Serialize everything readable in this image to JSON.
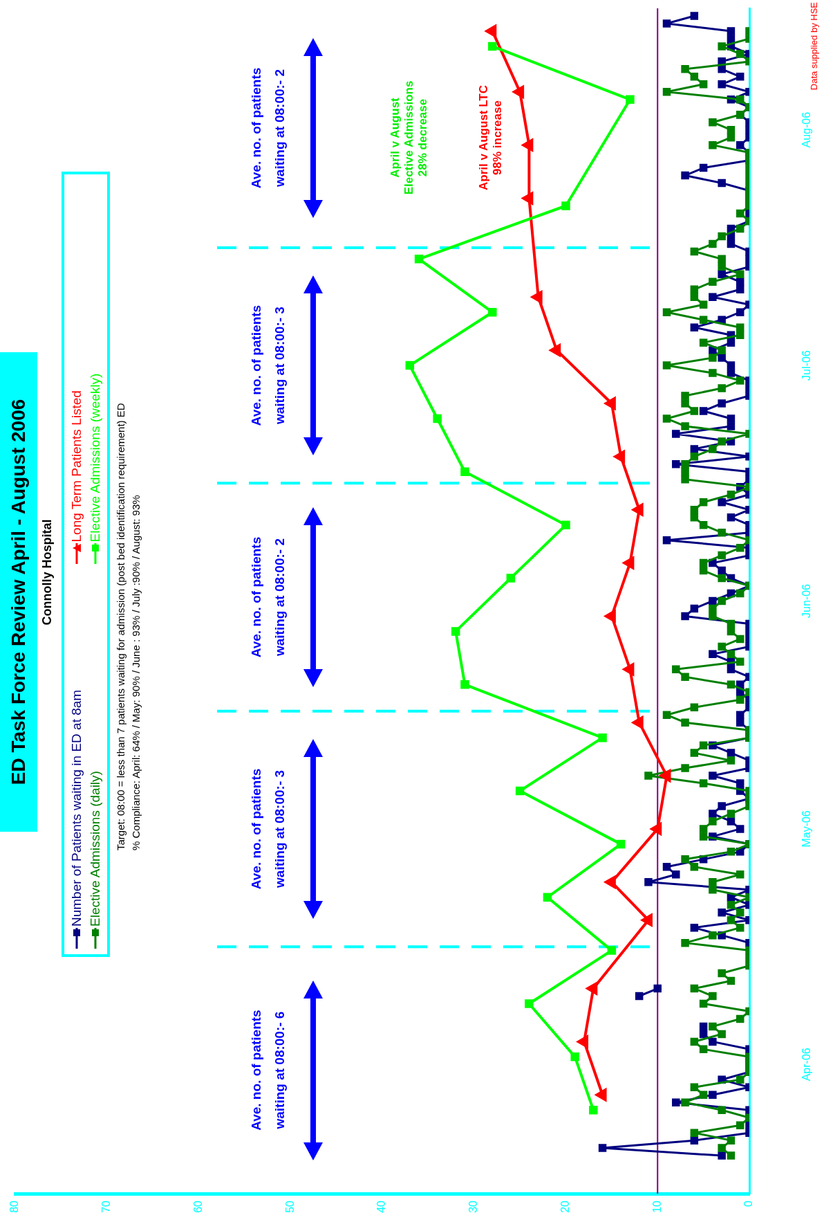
{
  "chart_data": {
    "type": "line",
    "orientation": "horizontal",
    "title": "ED Task Force Review April - August 2006",
    "subtitle": "Connolly Hospital",
    "annotations": [
      "Target: 08:00 = less than 7 patients waiting for admission (post bed identification requirement) ED",
      "% Compliance:   April: 64% / May: 90% / June : 93% / July :90% / August: 93%",
      "Ave. no. of patients\nwaiting at 08:00:- 6",
      "Ave. no. of patients\nwaiting at 08:00:- 3",
      "Ave. no. of patients\nwaiting at 08:00:- 2",
      "Ave. no. of patients\nwaiting at 08:00:- 3",
      "Ave. no. of patients\nwaiting at 08:00:- 2",
      "April v August\nElective Admissions\n28% decrease",
      "April v August  LTC\n98% increase",
      "Data supplied by HSE"
    ],
    "x": [
      "2006-04-03",
      "2006-04-04",
      "2006-04-05",
      "2006-04-06",
      "2006-04-07",
      "2006-04-08",
      "2006-04-09",
      "2006-04-10",
      "2006-04-11",
      "2006-04-12",
      "2006-04-13",
      "2006-04-14",
      "2006-04-15",
      "2006-04-16",
      "2006-04-17",
      "2006-04-18",
      "2006-04-19",
      "2006-04-20",
      "2006-04-21",
      "2006-04-22",
      "2006-04-23",
      "2006-04-24",
      "2006-04-25",
      "2006-04-26",
      "2006-04-27",
      "2006-04-28",
      "2006-04-29",
      "2006-04-30",
      "2006-05-01",
      "2006-05-02",
      "2006-05-03",
      "2006-05-04",
      "2006-05-05",
      "2006-05-06",
      "2006-05-07",
      "2006-05-08",
      "2006-05-09",
      "2006-05-10",
      "2006-05-11",
      "2006-05-12",
      "2006-05-13",
      "2006-05-14",
      "2006-05-15",
      "2006-05-16",
      "2006-05-17",
      "2006-05-18",
      "2006-05-19",
      "2006-05-20",
      "2006-05-21",
      "2006-05-22",
      "2006-05-23",
      "2006-05-24",
      "2006-05-25",
      "2006-05-26",
      "2006-05-27",
      "2006-05-28",
      "2006-05-29",
      "2006-05-30",
      "2006-05-31",
      "2006-06-01",
      "2006-06-02",
      "2006-06-03",
      "2006-06-04",
      "2006-06-05",
      "2006-06-06",
      "2006-06-07",
      "2006-06-08",
      "2006-06-09",
      "2006-06-10",
      "2006-06-11",
      "2006-06-12",
      "2006-06-13",
      "2006-06-14",
      "2006-06-15",
      "2006-06-16",
      "2006-06-17",
      "2006-06-18",
      "2006-06-19",
      "2006-06-20",
      "2006-06-21",
      "2006-06-22",
      "2006-06-23",
      "2006-06-24",
      "2006-06-25",
      "2006-06-26",
      "2006-06-27",
      "2006-06-28",
      "2006-06-29",
      "2006-06-30",
      "2006-07-01",
      "2006-07-02",
      "2006-07-03",
      "2006-07-04",
      "2006-07-05",
      "2006-07-06",
      "2006-07-07",
      "2006-07-08",
      "2006-07-09",
      "2006-07-10",
      "2006-07-11",
      "2006-07-12",
      "2006-07-13",
      "2006-07-14",
      "2006-07-15",
      "2006-07-16",
      "2006-07-17",
      "2006-07-18",
      "2006-07-19",
      "2006-07-20",
      "2006-07-21",
      "2006-07-22",
      "2006-07-23",
      "2006-07-24",
      "2006-07-25",
      "2006-07-26",
      "2006-07-27",
      "2006-07-28",
      "2006-07-29",
      "2006-07-30",
      "2006-07-31",
      "2006-08-01",
      "2006-08-02",
      "2006-08-03",
      "2006-08-04",
      "2006-08-05",
      "2006-08-06",
      "2006-08-07",
      "2006-08-08",
      "2006-08-09",
      "2006-08-10",
      "2006-08-11",
      "2006-08-12",
      "2006-08-13",
      "2006-08-14",
      "2006-08-15",
      "2006-08-16",
      "2006-08-17",
      "2006-08-18",
      "2006-08-19",
      "2006-08-20",
      "2006-08-21",
      "2006-08-22",
      "2006-08-23",
      "2006-08-24",
      "2006-08-25",
      "2006-08-26",
      "2006-08-27",
      "2006-08-28",
      "2006-08-29",
      "2006-08-30",
      "2006-08-31"
    ],
    "ylim": [
      "2006-03-29",
      "2006-09-01"
    ],
    "yticks": [
      {
        "value": "2006-04-15",
        "label": "Apr-06"
      },
      {
        "value": "2006-05-16",
        "label": "May-06"
      },
      {
        "value": "2006-06-15",
        "label": "Jun-06"
      },
      {
        "value": "2006-07-16",
        "label": "Jul-06"
      },
      {
        "value": "2006-08-16",
        "label": "Aug-06"
      }
    ],
    "xlim": [
      80,
      0
    ],
    "xticks": [
      0,
      10,
      20,
      30,
      40,
      50,
      60,
      70,
      80
    ],
    "grid": false,
    "legend": "left",
    "ref_lines": [
      {
        "axis": "y",
        "value": "2006-04-30T12:00",
        "color": "#00ffff",
        "line_style": "dashed"
      },
      {
        "axis": "y",
        "value": "2006-05-31T12:00",
        "color": "#00ffff",
        "line_style": "dashed"
      },
      {
        "axis": "y",
        "value": "2006-06-30T12:00",
        "color": "#00ffff",
        "line_style": "dashed"
      },
      {
        "axis": "y",
        "value": "2006-07-31T12:00",
        "color": "#00ffff",
        "line_style": "dashed"
      },
      {
        "axis": "x",
        "value": 10,
        "color": "#800080",
        "line_style": "solid"
      }
    ],
    "series": [
      {
        "name": "Number of Patients waiting in ED at 8am",
        "color": "#000080",
        "marker": "square",
        "values": [
          3,
          16,
          6,
          0,
          0,
          0,
          0,
          8,
          4,
          0,
          3,
          0,
          0,
          0,
          0,
          4,
          5,
          5,
          null,
          null,
          null,
          12,
          10,
          null,
          null,
          null,
          null,
          null,
          0,
          3,
          6,
          0,
          3,
          0,
          2,
          0,
          11,
          8,
          9,
          5,
          1,
          0,
          4,
          1,
          2,
          4,
          3,
          0,
          1,
          1,
          4,
          0,
          0,
          2,
          4,
          0,
          0,
          1,
          1,
          0,
          0,
          1,
          1,
          0,
          2,
          2,
          4,
          0,
          0,
          0,
          0,
          7,
          6,
          4,
          2,
          0,
          2,
          3,
          4,
          0,
          0,
          9,
          0,
          0,
          2,
          0,
          3,
          0,
          1,
          0,
          0,
          8,
          0,
          6,
          2,
          8,
          2,
          2,
          5,
          3,
          0,
          0,
          0,
          2,
          2,
          3,
          4,
          2,
          2,
          6,
          3,
          1,
          0,
          4,
          1,
          1,
          3,
          0,
          0,
          0,
          2,
          2,
          2,
          0,
          0,
          0,
          0,
          0,
          3,
          7,
          5,
          0,
          0,
          1,
          0,
          0,
          0,
          1,
          0,
          2,
          0,
          3,
          1,
          3,
          3,
          0,
          2,
          2,
          2,
          9,
          6
        ]
      },
      {
        "name": "Elective Admissions (daily)",
        "color": "#008000",
        "marker": "square",
        "values": [
          2,
          3,
          2,
          6,
          1,
          0,
          3,
          7,
          5,
          6,
          1,
          0,
          0,
          0,
          5,
          6,
          3,
          4,
          1,
          0,
          5,
          4,
          6,
          2,
          3,
          0,
          0,
          0,
          7,
          4,
          1,
          2,
          1,
          2,
          0,
          4,
          4,
          1,
          6,
          7,
          2,
          0,
          5,
          5,
          4,
          2,
          0,
          0,
          0,
          5,
          11,
          7,
          2,
          6,
          5,
          0,
          0,
          7,
          9,
          6,
          1,
          0,
          2,
          7,
          8,
          1,
          2,
          3,
          1,
          2,
          2,
          4,
          4,
          3,
          1,
          0,
          3,
          5,
          5,
          3,
          1,
          0,
          3,
          5,
          6,
          6,
          5,
          2,
          0,
          7,
          7,
          7,
          6,
          4,
          3,
          0,
          7,
          9,
          6,
          7,
          7,
          3,
          1,
          4,
          9,
          4,
          3,
          5,
          1,
          1,
          5,
          9,
          5,
          6,
          6,
          4,
          1,
          3,
          3,
          6,
          4,
          3,
          1,
          0,
          1,
          0,
          0,
          0,
          0,
          0,
          0,
          0,
          0,
          4,
          2,
          2,
          4,
          1,
          0,
          1,
          9,
          5,
          6,
          7,
          0,
          1,
          3,
          0,
          0,
          null,
          null
        ]
      },
      {
        "name": "Long Term Patients Listed",
        "color": "#ff0000",
        "marker": "triangle",
        "x": [
          "2006-04-11",
          "2006-04-18",
          "2006-04-25",
          "2006-05-04",
          "2006-05-09",
          "2006-05-16",
          "2006-05-23",
          "2006-05-30",
          "2006-06-06",
          "2006-06-13",
          "2006-06-20",
          "2006-06-27",
          "2006-07-04",
          "2006-07-11",
          "2006-07-18",
          "2006-07-25",
          "2006-08-07",
          "2006-08-14",
          "2006-08-21",
          "2006-08-29"
        ],
        "values": [
          16,
          18,
          17,
          11,
          15,
          10,
          9,
          12,
          13,
          15,
          13,
          12,
          14,
          15,
          21,
          23,
          24,
          24,
          25,
          28
        ]
      },
      {
        "name": "Elective Admissions (weekly)",
        "color": "#00ff00",
        "marker": "square",
        "x": [
          "2006-04-09",
          "2006-04-16",
          "2006-04-23",
          "2006-04-30",
          "2006-05-07",
          "2006-05-14",
          "2006-05-21",
          "2006-05-28",
          "2006-06-04",
          "2006-06-11",
          "2006-06-18",
          "2006-06-25",
          "2006-07-02",
          "2006-07-09",
          "2006-07-16",
          "2006-07-23",
          "2006-07-30",
          "2006-08-06",
          "2006-08-20",
          "2006-08-27"
        ],
        "values": [
          17,
          19,
          24,
          15,
          22,
          14,
          25,
          16,
          31,
          32,
          26,
          20,
          31,
          34,
          37,
          28,
          36,
          20,
          13,
          28
        ]
      }
    ]
  }
}
